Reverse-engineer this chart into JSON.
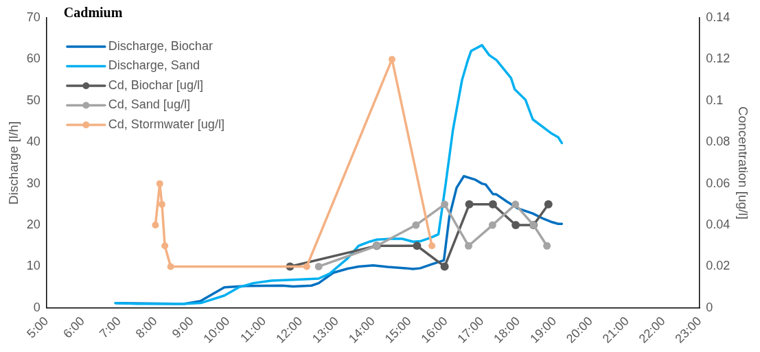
{
  "chart_data": {
    "type": "line",
    "title": "Cadmium",
    "ylabel": "Discharge [l/h]",
    "y2label": "Concentration [ug/l]",
    "xlim": [
      5,
      23
    ],
    "xticks": [
      {
        "value": 5,
        "label": "5:00"
      },
      {
        "value": 6,
        "label": "6:00"
      },
      {
        "value": 7,
        "label": "7:00"
      },
      {
        "value": 8,
        "label": "8:00"
      },
      {
        "value": 9,
        "label": "9:00"
      },
      {
        "value": 10,
        "label": "10:00"
      },
      {
        "value": 11,
        "label": "11:00"
      },
      {
        "value": 12,
        "label": "12:00"
      },
      {
        "value": 13,
        "label": "13:00"
      },
      {
        "value": 14,
        "label": "14:00"
      },
      {
        "value": 15,
        "label": "15:00"
      },
      {
        "value": 16,
        "label": "16:00"
      },
      {
        "value": 17,
        "label": "17:00"
      },
      {
        "value": 18,
        "label": "18:00"
      },
      {
        "value": 19,
        "label": "19:00"
      },
      {
        "value": 20,
        "label": "20:00"
      },
      {
        "value": 21,
        "label": "21:00"
      },
      {
        "value": 22,
        "label": "22:00"
      },
      {
        "value": 23,
        "label": "23:00"
      }
    ],
    "ylim": [
      0,
      70
    ],
    "yticks": [
      0,
      10,
      20,
      30,
      40,
      50,
      60,
      70
    ],
    "y2lim": [
      0,
      0.14
    ],
    "y2ticks": [
      0,
      0.02,
      0.04,
      0.06,
      0.08,
      0.1,
      0.12,
      0.14
    ],
    "grid": false,
    "legend": "top left",
    "line_style": "solid",
    "series": [
      {
        "name": "Discharge, Biochar",
        "color": "#0070c0",
        "marker": "none",
        "x": [
          6.9,
          8.8,
          9.25,
          9.9,
          10.5,
          11.5,
          11.8,
          12.3,
          12.5,
          12.9,
          13.3,
          13.6,
          14.0,
          14.4,
          14.9,
          15.1,
          15.3,
          15.6,
          15.95,
          16.1,
          16.3,
          16.5,
          16.8,
          17.0,
          17.1,
          17.3,
          17.4,
          17.7,
          18.0,
          18.4,
          18.7,
          18.9,
          19.1,
          19.2
        ],
        "values": [
          1.2,
          1.0,
          1.7,
          5,
          5.3,
          5.4,
          5.2,
          5.4,
          6,
          8.5,
          9.5,
          10,
          10.3,
          9.9,
          9.6,
          9.4,
          9.6,
          10.5,
          11.5,
          22,
          29,
          31.8,
          31,
          30,
          29.8,
          27.5,
          27.4,
          25.6,
          24,
          22.8,
          21.5,
          20.8,
          20.3,
          20.3
        ]
      },
      {
        "name": "Discharge, Sand",
        "color": "#00b0f0",
        "marker": "none",
        "x": [
          6.9,
          7.5,
          8.8,
          9.25,
          9.9,
          10.3,
          10.7,
          11.2,
          12.0,
          12.5,
          12.8,
          13.3,
          13.6,
          13.9,
          14.1,
          14.5,
          14.8,
          15.1,
          15.3,
          15.6,
          15.8,
          16.0,
          16.2,
          16.45,
          16.6,
          16.7,
          17.0,
          17.2,
          17.4,
          17.8,
          17.9,
          18.2,
          18.4,
          18.9,
          19.1,
          19.2
        ],
        "values": [
          1.2,
          1.0,
          1.0,
          1.2,
          3,
          5,
          6,
          6.6,
          6.9,
          7.1,
          8.3,
          12,
          15,
          16,
          16.5,
          16.7,
          16.7,
          16.0,
          16.1,
          17,
          17.8,
          30,
          43,
          55,
          59.5,
          62,
          63.4,
          61,
          59.8,
          55.5,
          52.8,
          50.2,
          45.5,
          42.2,
          41.2,
          39.8
        ]
      },
      {
        "name": "Cd, Biochar [ug/l]",
        "color": "#595959",
        "marker": "circle",
        "axis": "y2",
        "x": [
          11.71,
          14.1,
          15.21,
          15.97,
          16.65,
          17.3,
          17.93,
          18.42,
          18.83
        ],
        "values": [
          0.02,
          0.03,
          0.03,
          0.02,
          0.05,
          0.05,
          0.04,
          0.04,
          0.05
        ]
      },
      {
        "name": "Cd, Sand [ug/l]",
        "color": "#a5a5a5",
        "marker": "circle",
        "axis": "y2",
        "x": [
          12.5,
          14.1,
          15.18,
          15.97,
          16.63,
          17.29,
          17.92,
          18.42,
          18.79
        ],
        "values": [
          0.02,
          0.03,
          0.04,
          0.05,
          0.03,
          0.04,
          0.05,
          0.04,
          0.03
        ]
      },
      {
        "name": "Cd, Stormwater [ug/l]",
        "color": "#f4b183",
        "marker": "circle",
        "axis": "y2",
        "x": [
          8.0,
          8.12,
          8.18,
          8.26,
          8.42,
          12.17,
          14.52,
          15.62
        ],
        "values": [
          0.04,
          0.06,
          0.05,
          0.03,
          0.02,
          0.02,
          0.12,
          0.03
        ]
      }
    ]
  }
}
